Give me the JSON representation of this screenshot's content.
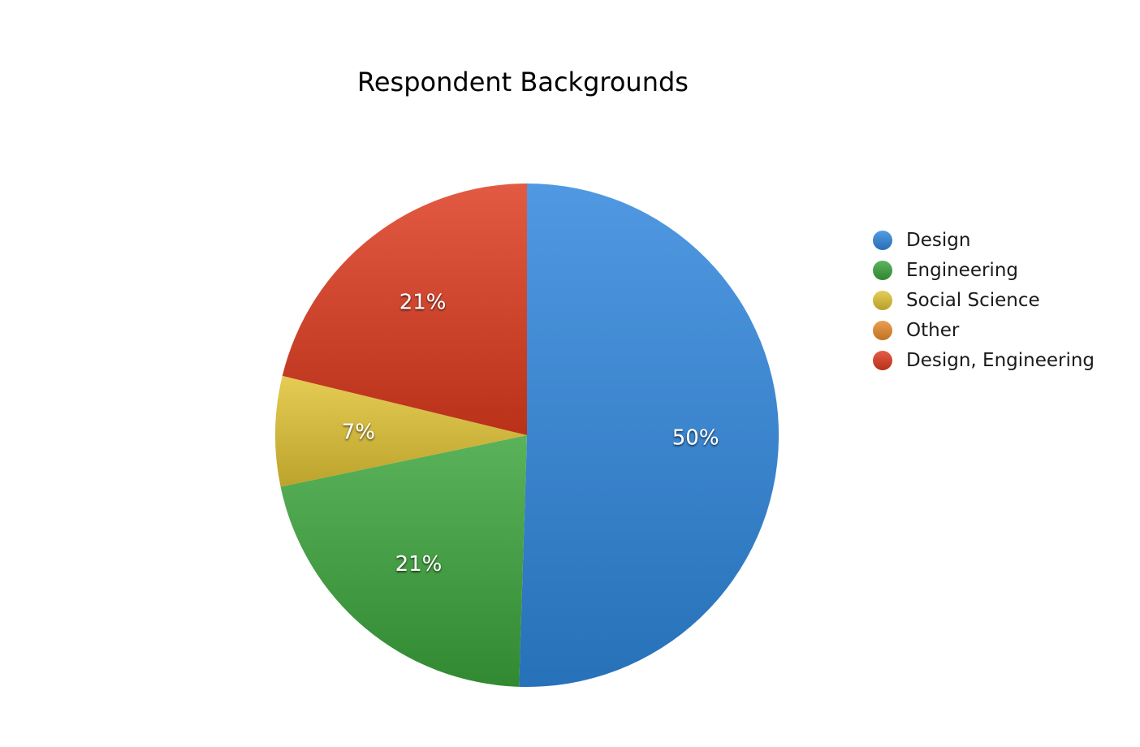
{
  "chart_data": {
    "type": "pie",
    "title": "Respondent Backgrounds",
    "categories": [
      "Design",
      "Engineering",
      "Social Science",
      "Other",
      "Design, Engineering"
    ],
    "values": [
      50,
      21,
      7,
      0,
      21
    ],
    "value_labels": [
      "50%",
      "21%",
      "7%",
      "",
      "21%"
    ],
    "colors": [
      "#2f86dc",
      "#3aa33a",
      "#e0c233",
      "#e88a2a",
      "#de3a1f"
    ],
    "legend_position": "right"
  }
}
